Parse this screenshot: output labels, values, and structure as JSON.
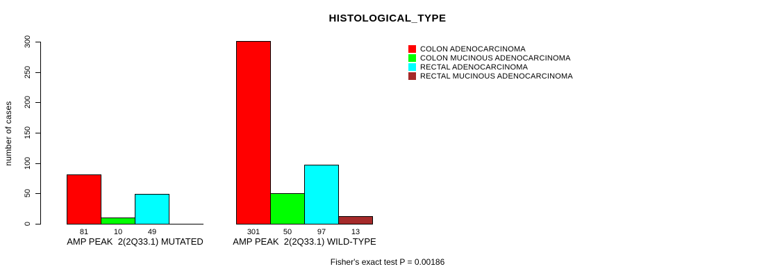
{
  "chart_data": {
    "type": "bar",
    "title": "HISTOLOGICAL_TYPE",
    "ylabel": "number of cases",
    "ylim": [
      0,
      300
    ],
    "yticks": [
      0,
      50,
      100,
      150,
      200,
      250,
      300
    ],
    "grid": false,
    "legend_position": "right-of-plot-top",
    "categories": [
      "AMP PEAK  2(2Q33.1) MUTATED",
      "AMP PEAK  2(2Q33.1) WILD-TYPE"
    ],
    "series": [
      {
        "name": "COLON ADENOCARCINOMA",
        "color": "#ff0000",
        "values": [
          81,
          301
        ]
      },
      {
        "name": "COLON MUCINOUS ADENOCARCINOMA",
        "color": "#00ff00",
        "values": [
          10,
          50
        ]
      },
      {
        "name": "RECTAL ADENOCARCINOMA",
        "color": "#00ffff",
        "values": [
          49,
          97
        ]
      },
      {
        "name": "RECTAL MUCINOUS ADENOCARCINOMA",
        "color": "#a52a2a",
        "values": [
          0,
          13
        ]
      }
    ],
    "bar_value_labels": [
      [
        "81",
        "10",
        "49",
        ""
      ],
      [
        "301",
        "50",
        "97",
        "13"
      ]
    ],
    "footnote": "Fisher's exact test P = 0.00186"
  }
}
